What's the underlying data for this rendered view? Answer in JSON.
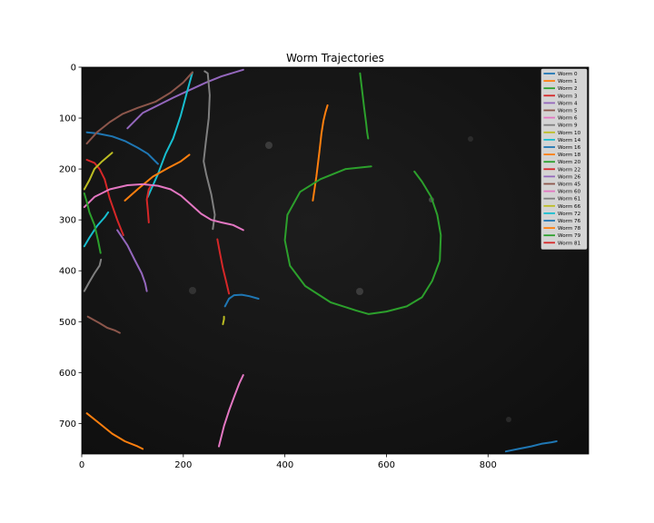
{
  "chart_data": {
    "type": "line",
    "title": "Worm Trajectories",
    "xlabel": "",
    "ylabel": "",
    "xlim": [
      0,
      998
    ],
    "ylim": [
      760,
      0
    ],
    "y_inverted": true,
    "xticks": [
      0,
      200,
      400,
      600,
      800
    ],
    "yticks": [
      0,
      100,
      200,
      300,
      400,
      500,
      600,
      700
    ],
    "grid": false,
    "legend_position": "top-right",
    "background": "dark microscopy image",
    "series": [
      {
        "name": "Worm 0",
        "color": "#1f77b4",
        "x": [
          10,
          30,
          60,
          85,
          110,
          130,
          150
        ],
        "y": [
          128,
          130,
          136,
          145,
          158,
          170,
          190
        ]
      },
      {
        "name": "Worm 1",
        "color": "#ff7f0e",
        "x": [
          455,
          462,
          468,
          472,
          476,
          480,
          484
        ],
        "y": [
          262,
          215,
          165,
          130,
          105,
          88,
          75
        ]
      },
      {
        "name": "Worm 2",
        "color": "#2ca02c",
        "x": [
          548,
          552,
          556,
          560,
          562,
          564
        ],
        "y": [
          12,
          45,
          80,
          110,
          128,
          140
        ]
      },
      {
        "name": "Worm 3",
        "color": "#d62728",
        "x": [
          10,
          25,
          35,
          45,
          55,
          70,
          82
        ],
        "y": [
          182,
          188,
          200,
          220,
          258,
          300,
          330
        ]
      },
      {
        "name": "Worm 4",
        "color": "#9467bd",
        "x": [
          90,
          120,
          150,
          180,
          210,
          245,
          275,
          318
        ],
        "y": [
          120,
          90,
          75,
          60,
          46,
          30,
          18,
          5
        ]
      },
      {
        "name": "Worm 5",
        "color": "#8c564b",
        "x": [
          12,
          35,
          50,
          65,
          75
        ],
        "y": [
          490,
          503,
          512,
          517,
          522
        ]
      },
      {
        "name": "Worm 6",
        "color": "#e377c2",
        "x": [
          270,
          280,
          290,
          300,
          310,
          318
        ],
        "y": [
          745,
          705,
          675,
          648,
          622,
          605
        ]
      },
      {
        "name": "Worm 9",
        "color": "#7f7f7f",
        "x": [
          242,
          248,
          252,
          250,
          244,
          240,
          245,
          255,
          262,
          258
        ],
        "y": [
          8,
          12,
          55,
          100,
          150,
          185,
          210,
          250,
          290,
          318
        ]
      },
      {
        "name": "Worm 10",
        "color": "#bcbd22",
        "x": [
          5,
          15,
          25,
          40,
          60
        ],
        "y": [
          240,
          222,
          200,
          185,
          168
        ]
      },
      {
        "name": "Worm 14",
        "color": "#17becf",
        "x": [
          130,
          150,
          165,
          180,
          195,
          207,
          218
        ],
        "y": [
          255,
          210,
          170,
          140,
          95,
          50,
          10
        ]
      },
      {
        "name": "Worm 16",
        "color": "#1f77b4",
        "x": [
          282,
          290,
          300,
          315,
          330,
          348
        ],
        "y": [
          470,
          455,
          448,
          447,
          450,
          455
        ]
      },
      {
        "name": "Worm 18",
        "color": "#ff7f0e",
        "x": [
          85,
          110,
          140,
          170,
          195,
          212
        ],
        "y": [
          262,
          240,
          215,
          198,
          185,
          172
        ]
      },
      {
        "name": "Worm 20",
        "color": "#2ca02c",
        "x": [
          570,
          520,
          470,
          430,
          405,
          400,
          410,
          440,
          490,
          540,
          565,
          600,
          640,
          670,
          690,
          705,
          707,
          700,
          688,
          670,
          655
        ],
        "y": [
          195,
          200,
          220,
          245,
          290,
          340,
          390,
          430,
          462,
          478,
          485,
          480,
          470,
          452,
          420,
          380,
          330,
          290,
          255,
          225,
          205
        ]
      },
      {
        "name": "Worm 22",
        "color": "#d62728",
        "x": [
          267,
          272,
          278,
          284,
          290
        ],
        "y": [
          338,
          365,
          395,
          420,
          445
        ]
      },
      {
        "name": "Worm 26",
        "color": "#9467bd",
        "x": [
          70,
          90,
          105,
          118,
          125,
          128
        ],
        "y": [
          320,
          350,
          380,
          405,
          425,
          440
        ]
      },
      {
        "name": "Worm 45",
        "color": "#8c564b",
        "x": [
          10,
          30,
          55,
          80,
          110,
          145,
          175,
          200,
          218
        ],
        "y": [
          150,
          128,
          108,
          92,
          80,
          68,
          50,
          30,
          10
        ]
      },
      {
        "name": "Worm 60",
        "color": "#e377c2",
        "x": [
          5,
          25,
          55,
          90,
          120,
          150,
          175,
          195,
          215,
          235,
          255,
          275,
          298,
          318
        ],
        "y": [
          275,
          255,
          240,
          232,
          230,
          233,
          240,
          252,
          270,
          288,
          300,
          305,
          310,
          320
        ]
      },
      {
        "name": "Worm 61",
        "color": "#7f7f7f",
        "x": [
          5,
          15,
          25,
          35,
          38
        ],
        "y": [
          440,
          422,
          405,
          390,
          378
        ]
      },
      {
        "name": "Worm 66",
        "color": "#bcbd22",
        "x": [
          278,
          280,
          280
        ],
        "y": [
          505,
          495,
          490
        ]
      },
      {
        "name": "Worm 72",
        "color": "#17becf",
        "x": [
          5,
          15,
          30,
          45,
          52
        ],
        "y": [
          352,
          335,
          312,
          295,
          285
        ]
      },
      {
        "name": "Worm 76",
        "color": "#1f77b4",
        "x": [
          835,
          860,
          885,
          905,
          925,
          935
        ],
        "y": [
          755,
          750,
          745,
          740,
          737,
          735
        ]
      },
      {
        "name": "Worm 78",
        "color": "#ff7f0e",
        "x": [
          10,
          35,
          60,
          85,
          110,
          120
        ],
        "y": [
          680,
          700,
          720,
          735,
          745,
          750
        ]
      },
      {
        "name": "Worm 79",
        "color": "#2ca02c",
        "x": [
          5,
          10,
          15,
          25,
          32,
          37
        ],
        "y": [
          248,
          265,
          285,
          310,
          340,
          365
        ]
      },
      {
        "name": "Worm 81",
        "color": "#d62728",
        "x": [
          132,
          130,
          128,
          132,
          135
        ],
        "y": [
          305,
          280,
          260,
          240,
          235
        ]
      }
    ]
  }
}
